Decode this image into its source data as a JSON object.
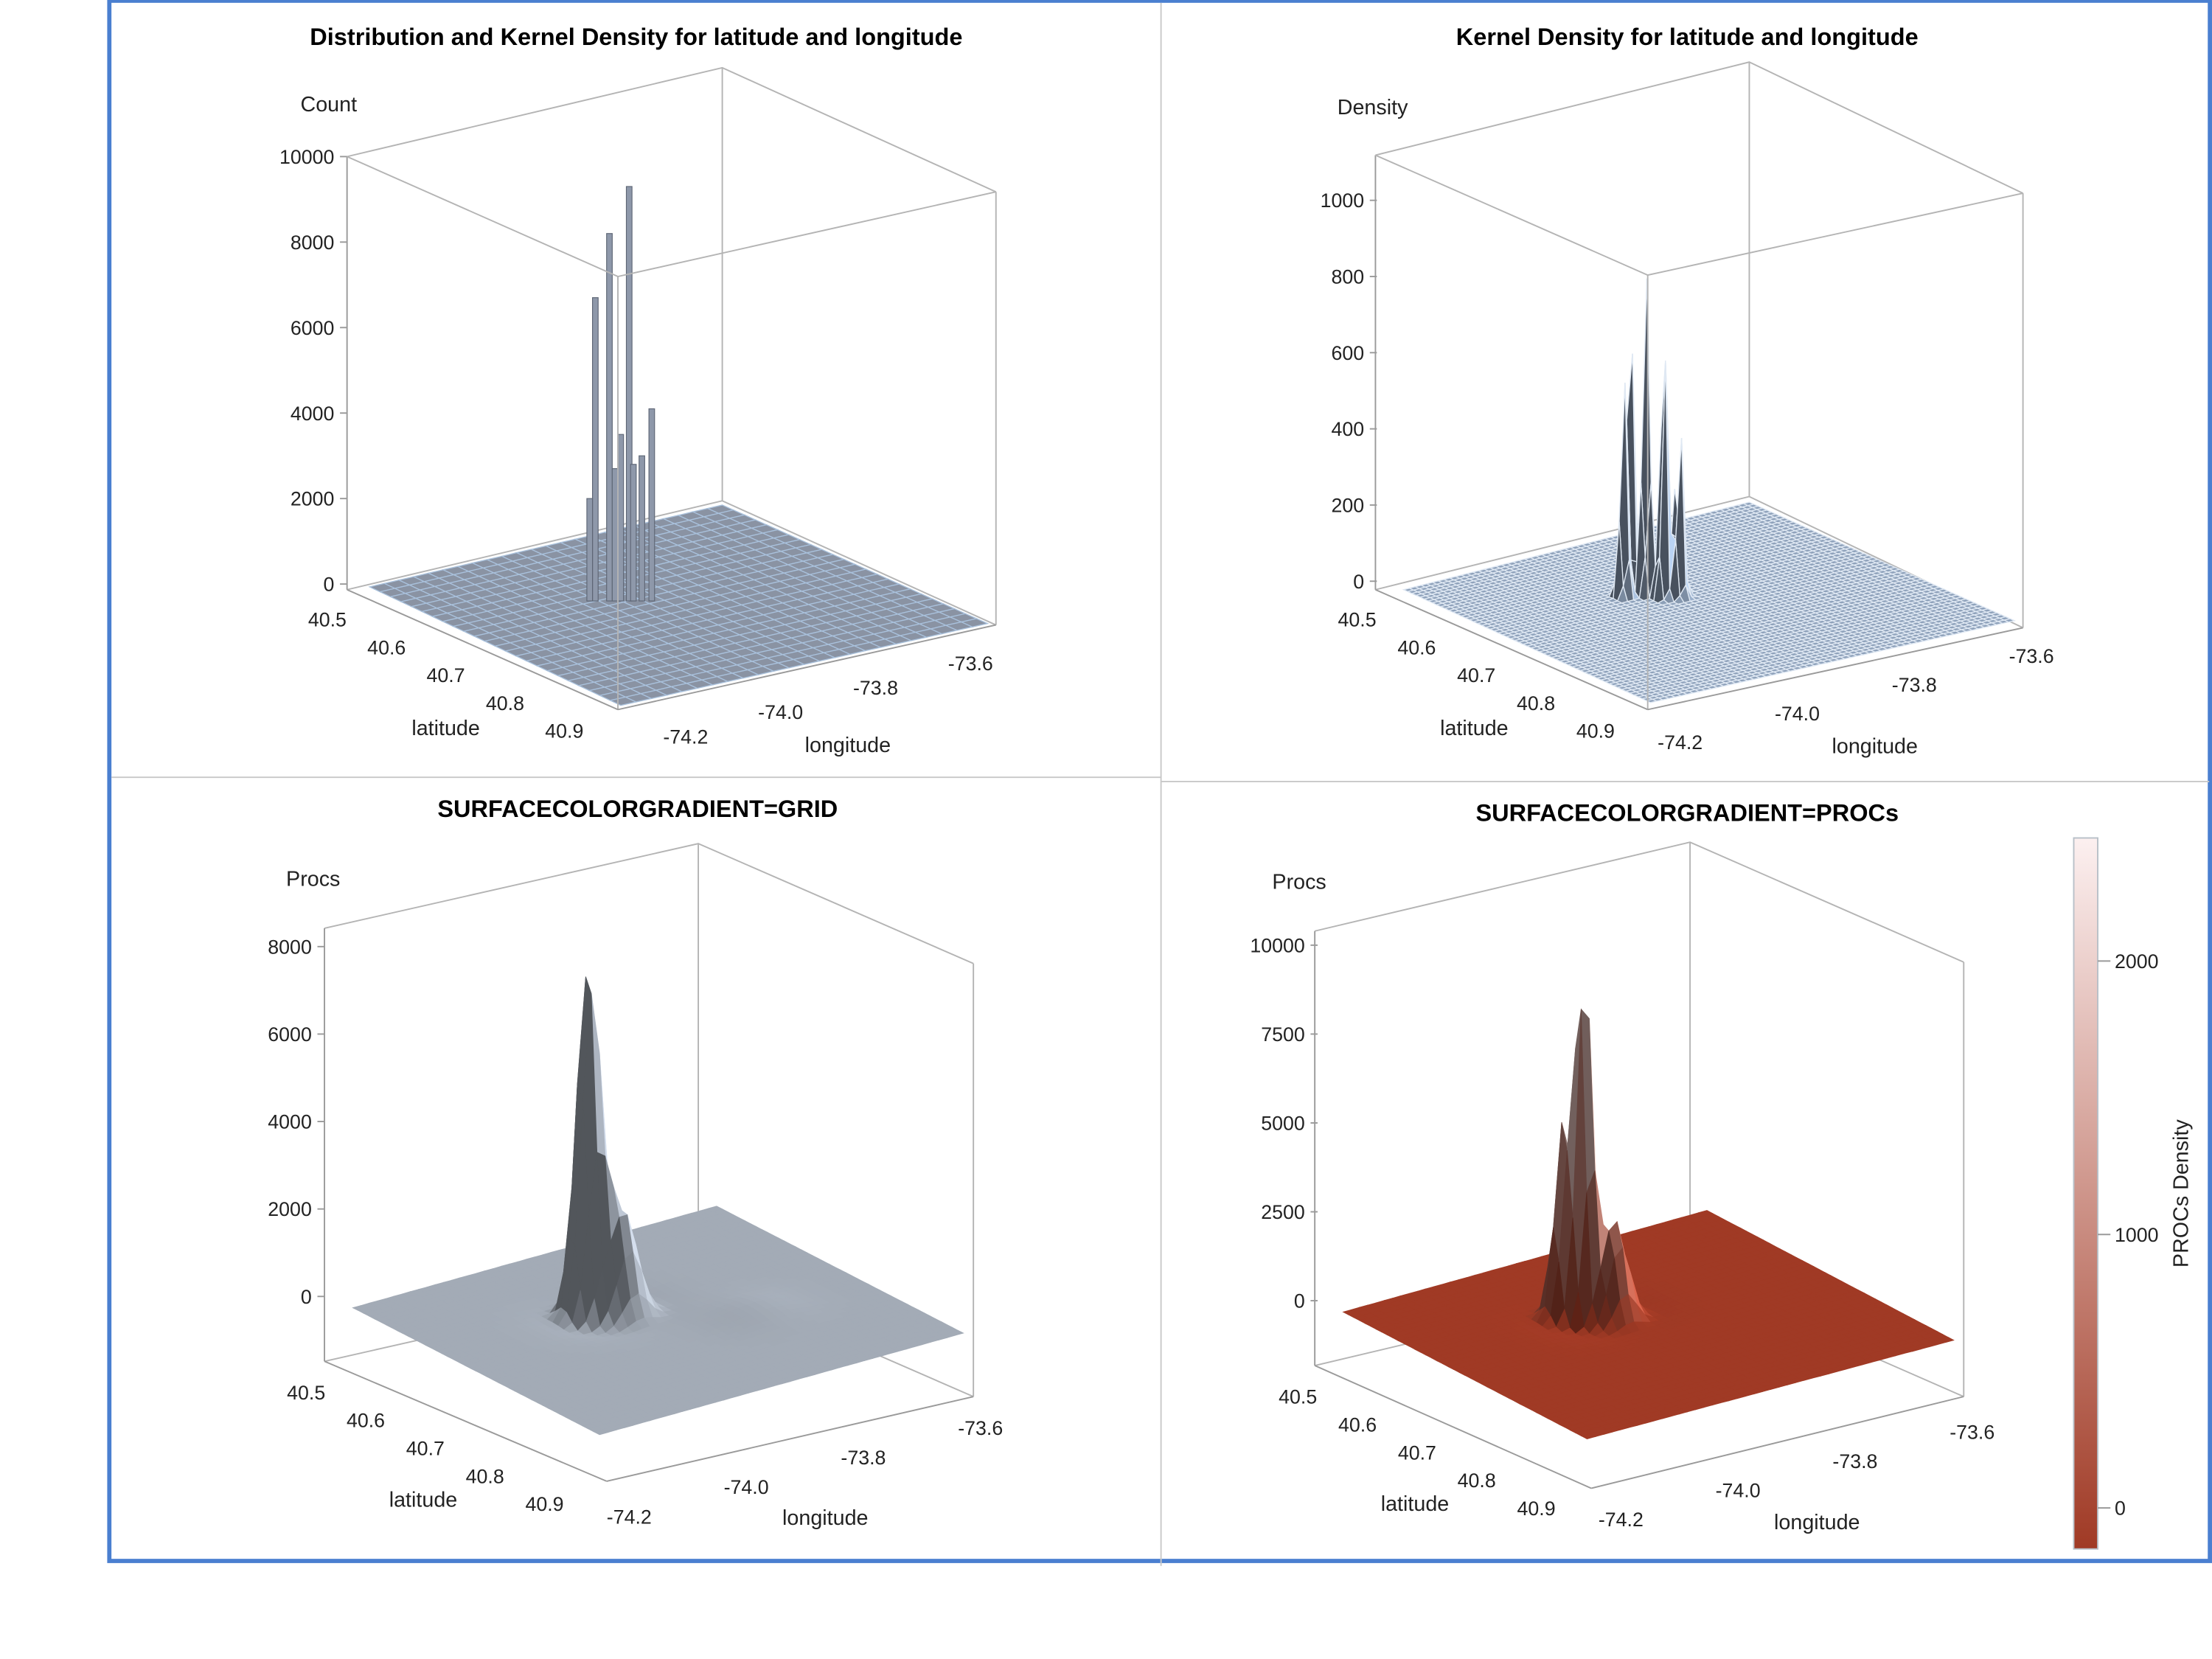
{
  "chart_data": [
    {
      "type": "surface",
      "title": "Distribution and Kernel Density for latitude and longitude",
      "zlabel": "Count",
      "xlabel": "latitude",
      "ylabel": "longitude",
      "z_ticks": [
        "0",
        "2000",
        "4000",
        "6000",
        "8000",
        "10000"
      ],
      "lat_ticks": [
        "40.5",
        "40.6",
        "40.7",
        "40.8",
        "40.9"
      ],
      "lon_ticks": [
        "-74.2",
        "-74.0",
        "-73.8",
        "-73.6"
      ],
      "zlim": [
        0,
        10000
      ],
      "peak_counts": [
        9300,
        8200,
        6700,
        4100,
        3500,
        3000,
        2700,
        2800,
        2000
      ],
      "peak_location": {
        "latitude": 40.75,
        "longitude": -73.98
      },
      "surface_color": "#8a93a3",
      "grid_color": "#a9c1dc"
    },
    {
      "type": "surface",
      "title": "Kernel Density for latitude and longitude",
      "zlabel": "Density",
      "xlabel": "latitude",
      "ylabel": "longitude",
      "z_ticks": [
        "0",
        "200",
        "400",
        "600",
        "800",
        "1000"
      ],
      "lat_ticks": [
        "40.5",
        "40.6",
        "40.7",
        "40.8",
        "40.9"
      ],
      "lon_ticks": [
        "-74.2",
        "-74.0",
        "-73.8",
        "-73.6"
      ],
      "zlim": [
        0,
        1100
      ],
      "peak_densities": [
        950,
        880,
        820,
        600,
        480,
        420,
        350
      ],
      "peak_location": {
        "latitude": 40.75,
        "longitude": -73.98
      },
      "surface_color": "#8fa2bb",
      "grid_color": "#dfe8f3"
    },
    {
      "type": "surface",
      "title": "SURFACECOLORGRADIENT=GRID",
      "zlabel": "Procs",
      "xlabel": "latitude",
      "ylabel": "longitude",
      "z_ticks": [
        "0",
        "2000",
        "4000",
        "6000",
        "8000"
      ],
      "lat_ticks": [
        "40.5",
        "40.6",
        "40.7",
        "40.8",
        "40.9"
      ],
      "lon_ticks": [
        "-74.2",
        "-74.0",
        "-73.8",
        "-73.6"
      ],
      "zlim": [
        -1500,
        8400
      ],
      "peak_value": 8200,
      "shoulder_value": 2600,
      "surface_color": "#a3abb6"
    },
    {
      "type": "surface",
      "title": "SURFACECOLORGRADIENT=PROCs",
      "zlabel": "Procs",
      "xlabel": "latitude",
      "ylabel": "longitude",
      "z_ticks": [
        "0",
        "2500",
        "5000",
        "7500",
        "10000"
      ],
      "lat_ticks": [
        "40.5",
        "40.6",
        "40.7",
        "40.8",
        "40.9"
      ],
      "lon_ticks": [
        "-74.2",
        "-74.0",
        "-73.8",
        "-73.6"
      ],
      "zlim": [
        -1800,
        10000
      ],
      "peak_value": 9800,
      "colorbar": {
        "label": "PROCs Density",
        "ticks": [
          "0",
          "1000",
          "2000"
        ],
        "range": [
          -150,
          2450
        ],
        "color_low": "#a03a25",
        "color_high": "#fcf0f0"
      }
    }
  ],
  "frame_color": "#4a7fd0"
}
